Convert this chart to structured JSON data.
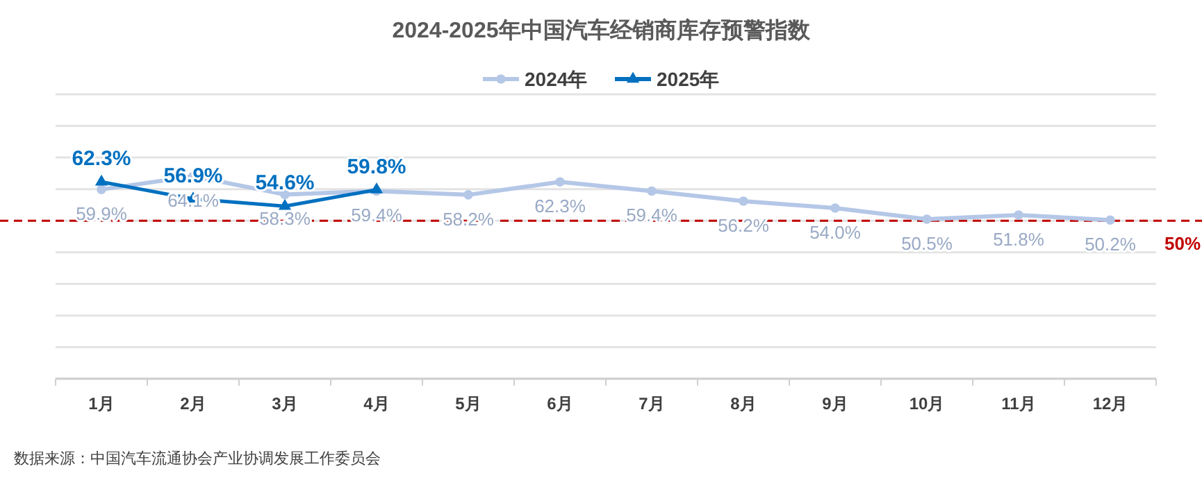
{
  "chart_data": {
    "type": "line",
    "title": "2024-2025年中国汽车经销商库存预警指数",
    "categories": [
      "1月",
      "2月",
      "3月",
      "4月",
      "5月",
      "6月",
      "7月",
      "8月",
      "9月",
      "10月",
      "11月",
      "12月"
    ],
    "series": [
      {
        "name": "2024年",
        "color": "#b4c7e7",
        "marker": "circle",
        "values": [
          59.9,
          64.1,
          58.3,
          59.4,
          58.2,
          62.3,
          59.4,
          56.2,
          54.0,
          50.5,
          51.8,
          50.2
        ],
        "value_labels": [
          "59.9%",
          "64.1%",
          "58.3%",
          "59.4%",
          "58.2%",
          "62.3%",
          "59.4%",
          "56.2%",
          "54.0%",
          "50.5%",
          "51.8%",
          "50.2%"
        ]
      },
      {
        "name": "2025年",
        "color": "#0070c0",
        "marker": "triangle",
        "values": [
          62.3,
          56.9,
          54.6,
          59.8,
          null,
          null,
          null,
          null,
          null,
          null,
          null,
          null
        ],
        "value_labels": [
          "62.3%",
          "56.9%",
          "54.6%",
          "59.8%",
          null,
          null,
          null,
          null,
          null,
          null,
          null,
          null
        ]
      }
    ],
    "ylim": [
      0,
      90
    ],
    "yticks": [
      {
        "value": 0,
        "label": null
      },
      {
        "value": 10,
        "label": null
      },
      {
        "value": 20,
        "label": null
      },
      {
        "value": 30,
        "label": null
      },
      {
        "value": 40,
        "label": null
      },
      {
        "value": 50,
        "label": null
      },
      {
        "value": 60,
        "label": null
      },
      {
        "value": 70,
        "label": null
      },
      {
        "value": 80,
        "label": null
      },
      {
        "value": 90,
        "label": null
      }
    ],
    "tick_labels": "x",
    "grid": "y",
    "legend": "top",
    "line_style": "solid",
    "ref_lines": [
      {
        "axis": "y",
        "value": 50,
        "label": "50%",
        "color": "#c00000",
        "line_style": "dashed"
      }
    ],
    "annotations": [
      "数据来源：中国汽车流通协会产业协调发展工作委员会"
    ]
  }
}
